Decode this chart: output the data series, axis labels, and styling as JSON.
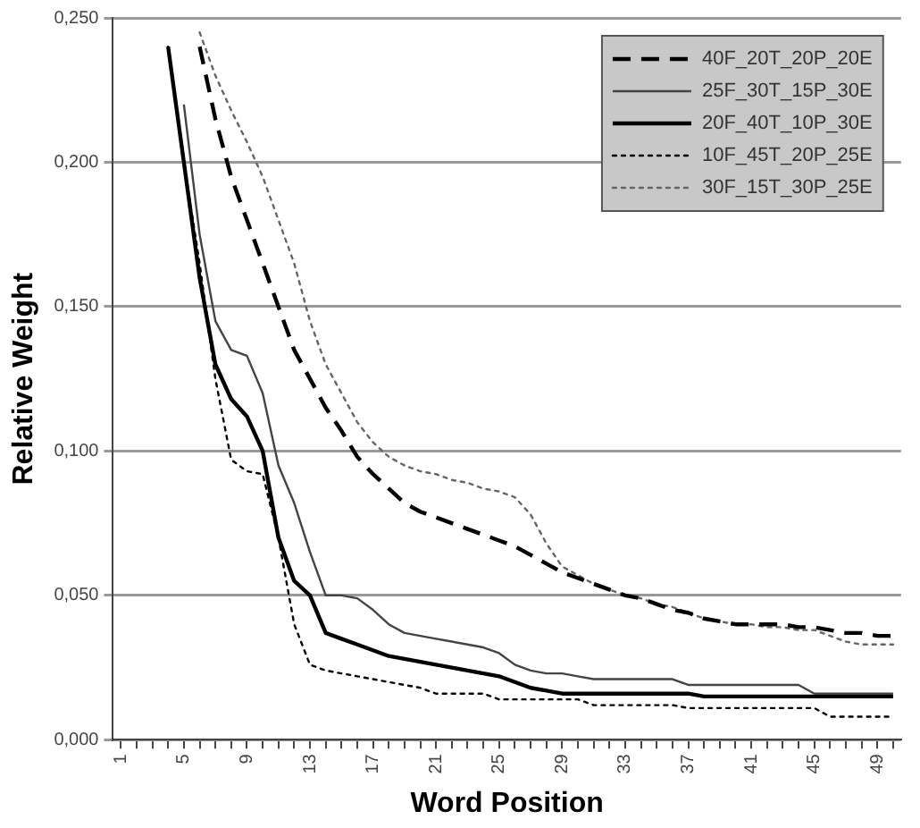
{
  "chart_data": {
    "type": "line",
    "xlabel": "Word Position",
    "ylabel": "Relative Weight",
    "categories": [
      "1",
      null,
      null,
      null,
      "5",
      null,
      null,
      null,
      "9",
      null,
      null,
      null,
      "13",
      null,
      null,
      null,
      "17",
      null,
      null,
      null,
      "21",
      null,
      null,
      null,
      "25",
      null,
      null,
      null,
      "29",
      null,
      null,
      null,
      "33",
      null,
      null,
      null,
      "37",
      null,
      null,
      null,
      "41",
      null,
      null,
      null,
      "45",
      null,
      null,
      null,
      "49",
      null
    ],
    "series": [
      {
        "name": "40F_20T_20P_20E",
        "color": "#000000",
        "line_style": "dashed",
        "values": [
          null,
          null,
          null,
          null,
          null,
          0.24,
          0.215,
          0.195,
          0.18,
          0.165,
          0.15,
          0.135,
          0.125,
          0.115,
          0.107,
          0.098,
          0.092,
          0.087,
          0.082,
          0.079,
          0.077,
          0.075,
          0.073,
          0.071,
          0.069,
          0.067,
          0.064,
          0.061,
          0.058,
          0.056,
          0.054,
          0.052,
          0.05,
          0.049,
          0.047,
          0.045,
          0.044,
          0.042,
          0.041,
          0.04,
          0.04,
          0.04,
          0.04,
          0.039,
          0.039,
          0.038,
          0.037,
          0.037,
          0.036,
          0.036
        ]
      },
      {
        "name": "25F_30T_15P_30E",
        "color": "#444444",
        "line_style": "solid",
        "values": [
          null,
          null,
          null,
          null,
          0.22,
          0.175,
          0.145,
          0.135,
          0.133,
          0.12,
          0.095,
          0.082,
          0.065,
          0.05,
          0.05,
          0.049,
          0.045,
          0.04,
          0.037,
          0.036,
          0.035,
          0.034,
          0.033,
          0.032,
          0.03,
          0.026,
          0.024,
          0.023,
          0.023,
          0.022,
          0.021,
          0.021,
          0.021,
          0.021,
          0.021,
          0.021,
          0.019,
          0.019,
          0.019,
          0.019,
          0.019,
          0.019,
          0.019,
          0.019,
          0.016,
          0.016,
          0.016,
          0.016,
          0.016,
          0.016
        ]
      },
      {
        "name": "20F_40T_10P_30E",
        "color": "#000000",
        "line_style": "solid",
        "values": [
          null,
          null,
          null,
          0.24,
          0.2,
          0.16,
          0.13,
          0.118,
          0.112,
          0.1,
          0.07,
          0.055,
          0.05,
          0.037,
          0.035,
          0.033,
          0.031,
          0.029,
          0.028,
          0.027,
          0.026,
          0.025,
          0.024,
          0.023,
          0.022,
          0.02,
          0.018,
          0.017,
          0.016,
          0.016,
          0.016,
          0.016,
          0.016,
          0.016,
          0.016,
          0.016,
          0.016,
          0.015,
          0.015,
          0.015,
          0.015,
          0.015,
          0.015,
          0.015,
          0.015,
          0.015,
          0.015,
          0.015,
          0.015,
          0.015
        ]
      },
      {
        "name": "10F_45T_20P_25E",
        "color": "#000000",
        "line_style": "dotted",
        "values": [
          null,
          null,
          null,
          0.24,
          0.2,
          0.165,
          0.125,
          0.097,
          0.093,
          0.092,
          0.07,
          0.04,
          0.026,
          0.024,
          0.023,
          0.022,
          0.021,
          0.02,
          0.019,
          0.018,
          0.016,
          0.016,
          0.016,
          0.016,
          0.014,
          0.014,
          0.014,
          0.014,
          0.014,
          0.014,
          0.012,
          0.012,
          0.012,
          0.012,
          0.012,
          0.012,
          0.011,
          0.011,
          0.011,
          0.011,
          0.011,
          0.011,
          0.011,
          0.011,
          0.011,
          0.008,
          0.008,
          0.008,
          0.008,
          0.008
        ]
      },
      {
        "name": "30F_15T_30P_25E",
        "color": "#666666",
        "line_style": "dotted",
        "values": [
          null,
          null,
          null,
          null,
          null,
          0.245,
          0.23,
          0.218,
          0.207,
          0.195,
          0.18,
          0.165,
          0.145,
          0.13,
          0.12,
          0.11,
          0.103,
          0.098,
          0.095,
          0.093,
          0.092,
          0.09,
          0.089,
          0.087,
          0.086,
          0.084,
          0.078,
          0.068,
          0.06,
          0.057,
          0.054,
          0.052,
          0.05,
          0.049,
          0.047,
          0.046,
          0.044,
          0.042,
          0.041,
          0.04,
          0.04,
          0.039,
          0.039,
          0.038,
          0.038,
          0.036,
          0.034,
          0.033,
          0.033,
          0.033
        ]
      }
    ],
    "ylim": [
      0,
      0.25
    ],
    "yticks": [
      {
        "value": 0,
        "label": "0,000"
      },
      {
        "value": 0.05,
        "label": "0,050"
      },
      {
        "value": 0.1,
        "label": "0,100"
      },
      {
        "value": 0.15,
        "label": "0,150"
      },
      {
        "value": 0.2,
        "label": "0,200"
      },
      {
        "value": 0.25,
        "label": "0,250"
      }
    ],
    "grid": "y",
    "legend": "top right"
  }
}
